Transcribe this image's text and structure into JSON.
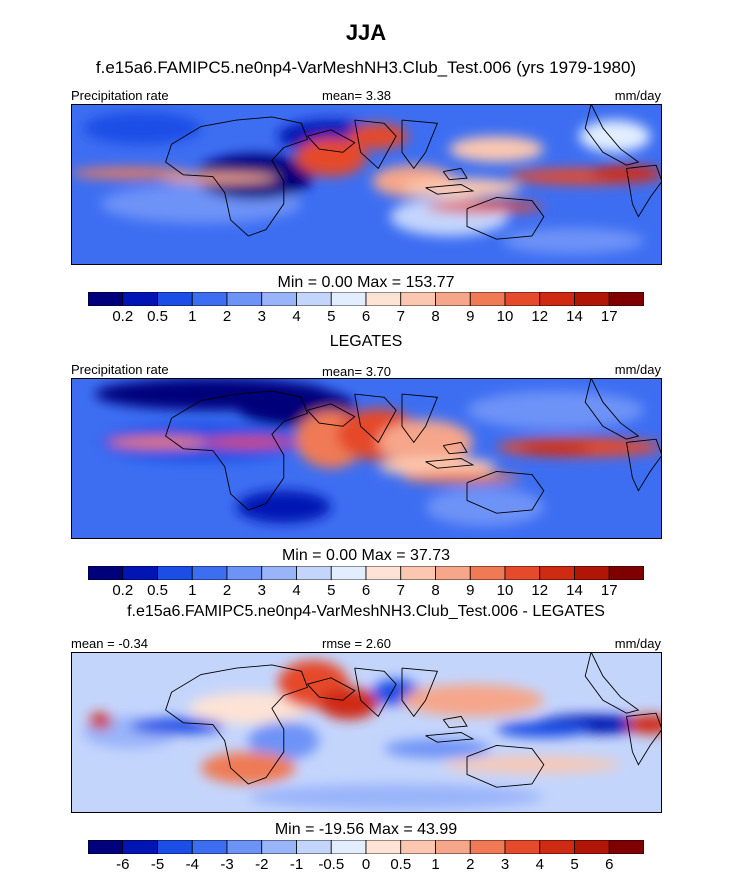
{
  "figure": {
    "title": "JJA",
    "subtitle": "f.e15a6.FAMIPC5.ne0np4-VarMeshNH3.Club_Test.006 (yrs 1979-1980)"
  },
  "chart_data": [
    {
      "type": "heatmap",
      "name": "model",
      "left_label": "Precipitation rate",
      "center_label": "mean=   3.38",
      "right_label": "mm/day",
      "minmax": "Min =   0.00 Max = 153.77",
      "bottom_title": "LEGATES",
      "colorbar_ticks": [
        "0.2",
        "0.5",
        "1",
        "2",
        "3",
        "4",
        "5",
        "6",
        "7",
        "8",
        "9",
        "10",
        "12",
        "14",
        "17"
      ],
      "colorbar_colors": [
        "#00007a",
        "#0015b3",
        "#1a4ee6",
        "#3d6ef2",
        "#6e93f7",
        "#9ab4fa",
        "#c4d5fc",
        "#e2eefe",
        "#fde3d6",
        "#fbc7b0",
        "#f6a68a",
        "#ef7a55",
        "#e54a2a",
        "#cf2a12",
        "#b01505",
        "#7f0000"
      ]
    },
    {
      "type": "heatmap",
      "name": "legates",
      "left_label": "Precipitation rate",
      "center_label": "mean=   3.70",
      "right_label": "mm/day",
      "minmax": "Min =   0.00 Max =  37.73",
      "bottom_title": "f.e15a6.FAMIPC5.ne0np4-VarMeshNH3.Club_Test.006 - LEGATES",
      "colorbar_ticks": [
        "0.2",
        "0.5",
        "1",
        "2",
        "3",
        "4",
        "5",
        "6",
        "7",
        "8",
        "9",
        "10",
        "12",
        "14",
        "17"
      ],
      "colorbar_colors": [
        "#00007a",
        "#0015b3",
        "#1a4ee6",
        "#3d6ef2",
        "#6e93f7",
        "#9ab4fa",
        "#c4d5fc",
        "#e2eefe",
        "#fde3d6",
        "#fbc7b0",
        "#f6a68a",
        "#ef7a55",
        "#e54a2a",
        "#cf2a12",
        "#b01505",
        "#7f0000"
      ]
    },
    {
      "type": "heatmap",
      "name": "difference",
      "left_label": "mean =  -0.34",
      "center_label": "rmse =   2.60",
      "right_label": "mm/day",
      "minmax": "Min = -19.56 Max =  43.99",
      "bottom_title": "",
      "colorbar_ticks": [
        "-6",
        "-5",
        "-4",
        "-3",
        "-2",
        "-1",
        "-0.5",
        "0",
        "0.5",
        "1",
        "2",
        "3",
        "4",
        "5",
        "6"
      ],
      "colorbar_colors": [
        "#00007a",
        "#0015b3",
        "#1a4ee6",
        "#3d6ef2",
        "#6e93f7",
        "#9ab4fa",
        "#c4d5fc",
        "#e2eefe",
        "#fde3d6",
        "#fbc7b0",
        "#f6a68a",
        "#ef7a55",
        "#e54a2a",
        "#cf2a12",
        "#b01505",
        "#7f0000"
      ]
    }
  ]
}
